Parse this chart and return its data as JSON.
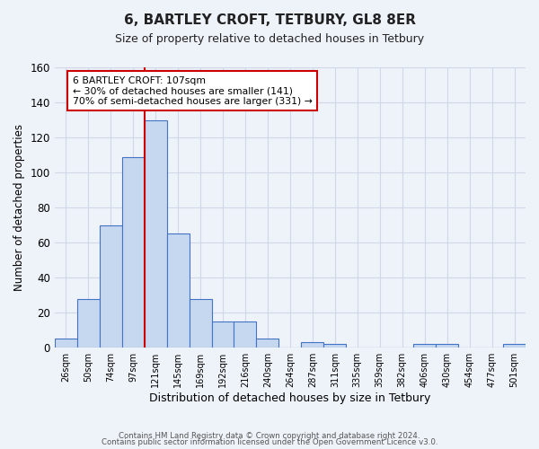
{
  "title": "6, BARTLEY CROFT, TETBURY, GL8 8ER",
  "subtitle": "Size of property relative to detached houses in Tetbury",
  "xlabel": "Distribution of detached houses by size in Tetbury",
  "ylabel": "Number of detached properties",
  "bar_labels": [
    "26sqm",
    "50sqm",
    "74sqm",
    "97sqm",
    "121sqm",
    "145sqm",
    "169sqm",
    "192sqm",
    "216sqm",
    "240sqm",
    "264sqm",
    "287sqm",
    "311sqm",
    "335sqm",
    "359sqm",
    "382sqm",
    "406sqm",
    "430sqm",
    "454sqm",
    "477sqm",
    "501sqm"
  ],
  "bar_values": [
    5,
    28,
    70,
    109,
    130,
    65,
    28,
    15,
    15,
    5,
    0,
    3,
    2,
    0,
    0,
    0,
    2,
    2,
    0,
    0,
    2
  ],
  "bar_color": "#c5d8f0",
  "bar_edge_color": "#4472c4",
  "ylim": [
    0,
    160
  ],
  "yticks": [
    0,
    20,
    40,
    60,
    80,
    100,
    120,
    140,
    160
  ],
  "vline_index": 3.5,
  "annotation_title": "6 BARTLEY CROFT: 107sqm",
  "annotation_line1": "← 30% of detached houses are smaller (141)",
  "annotation_line2": "70% of semi-detached houses are larger (331) →",
  "annotation_box_color": "#ffffff",
  "annotation_box_edge": "#cc0000",
  "vline_color": "#cc0000",
  "grid_color": "#d0d8e8",
  "background_color": "#eef2f9",
  "footer1": "Contains HM Land Registry data © Crown copyright and database right 2024.",
  "footer2": "Contains public sector information licensed under the Open Government Licence v3.0."
}
